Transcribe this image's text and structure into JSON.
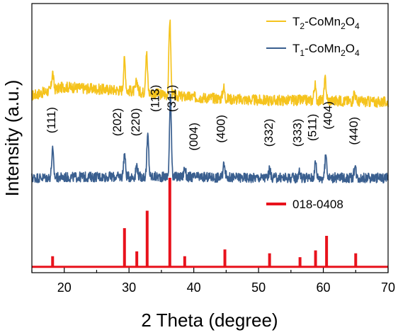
{
  "chart_data": {
    "type": "line",
    "title": "",
    "xlabel": "2 Theta (degree)",
    "ylabel": "Intensity (a.u.)",
    "xlim": [
      15,
      70
    ],
    "xticks": [
      20,
      30,
      40,
      50,
      60,
      70
    ],
    "y_ticks_shown": false,
    "grid": false,
    "legend_placement": "top-right",
    "legend": [
      {
        "series": "T2",
        "text_parts": [
          [
            "T",
            ""
          ],
          [
            "2",
            "sub"
          ],
          [
            "-CoMn",
            ""
          ],
          [
            "2",
            "sub"
          ],
          [
            "O",
            ""
          ],
          [
            "4",
            "sub"
          ]
        ]
      },
      {
        "series": "T1",
        "text_parts": [
          [
            "T",
            ""
          ],
          [
            "1",
            "sub"
          ],
          [
            "-CoMn",
            ""
          ],
          [
            "2",
            "sub"
          ],
          [
            "O",
            ""
          ],
          [
            "4",
            "sub"
          ]
        ]
      },
      {
        "series": "ref",
        "text_parts": [
          [
            "018-0408",
            ""
          ]
        ]
      }
    ],
    "series": [
      {
        "key": "T2",
        "name": "T2-CoMn2O4",
        "color": "#F5C31D",
        "kind": "xrd",
        "baseline": 8.6,
        "noise": 0.28,
        "baseline_curve": [
          [
            15,
            0.25
          ],
          [
            20,
            0.7
          ],
          [
            24,
            0.6
          ],
          [
            30,
            0.5
          ],
          [
            38,
            0.2
          ],
          [
            50,
            0.0
          ],
          [
            60,
            0.0
          ],
          [
            70,
            -0.1
          ]
        ],
        "peaks": [
          {
            "x": 18.2,
            "h": 0.9
          },
          {
            "x": 29.3,
            "h": 1.6
          },
          {
            "x": 31.2,
            "h": 0.55
          },
          {
            "x": 32.7,
            "h": 2.1
          },
          {
            "x": 36.3,
            "h": 3.9
          },
          {
            "x": 44.6,
            "h": 0.6
          },
          {
            "x": 58.7,
            "h": 0.8
          },
          {
            "x": 60.3,
            "h": 1.1
          },
          {
            "x": 64.8,
            "h": 0.5
          }
        ]
      },
      {
        "key": "T1",
        "name": "T1-CoMn2O4",
        "color": "#3A5F8F",
        "kind": "xrd",
        "baseline": 4.6,
        "noise": 0.26,
        "baseline_curve": [
          [
            15,
            0.0
          ],
          [
            25,
            0.05
          ],
          [
            35,
            0.05
          ],
          [
            50,
            0.0
          ],
          [
            70,
            0.0
          ]
        ],
        "peaks": [
          {
            "x": 18.2,
            "h": 1.4
          },
          {
            "x": 29.3,
            "h": 1.2
          },
          {
            "x": 31.2,
            "h": 0.6
          },
          {
            "x": 32.9,
            "h": 2.1
          },
          {
            "x": 36.4,
            "h": 4.2
          },
          {
            "x": 38.6,
            "h": 0.5
          },
          {
            "x": 44.7,
            "h": 0.8
          },
          {
            "x": 51.7,
            "h": 0.4
          },
          {
            "x": 56.3,
            "h": 0.35
          },
          {
            "x": 58.8,
            "h": 0.8
          },
          {
            "x": 60.4,
            "h": 1.2
          },
          {
            "x": 64.9,
            "h": 0.6
          }
        ]
      },
      {
        "key": "ref",
        "name": "018-0408",
        "color": "#E8121C",
        "kind": "sticks",
        "baseline": 0,
        "sticks": [
          {
            "x": 18.2,
            "h": 0.55
          },
          {
            "x": 29.3,
            "h": 2.0
          },
          {
            "x": 31.2,
            "h": 0.8
          },
          {
            "x": 32.8,
            "h": 2.9
          },
          {
            "x": 36.3,
            "h": 4.6
          },
          {
            "x": 38.6,
            "h": 0.55
          },
          {
            "x": 44.8,
            "h": 0.9
          },
          {
            "x": 51.7,
            "h": 0.7
          },
          {
            "x": 56.4,
            "h": 0.5
          },
          {
            "x": 58.8,
            "h": 0.85
          },
          {
            "x": 60.5,
            "h": 1.6
          },
          {
            "x": 65.0,
            "h": 0.7
          }
        ]
      }
    ],
    "annotations": [
      {
        "text": "(111)",
        "x": 18.6,
        "y": 6.9
      },
      {
        "text": "(202)",
        "x": 28.8,
        "y": 6.75
      },
      {
        "text": "(220)",
        "x": 31.6,
        "y": 6.75
      },
      {
        "text": "(113)",
        "x": 34.6,
        "y": 8.0
      },
      {
        "text": "(311)",
        "x": 37.2,
        "y": 8.0
      },
      {
        "text": "(004)",
        "x": 40.6,
        "y": 6.0
      },
      {
        "text": "(400)",
        "x": 44.8,
        "y": 6.4
      },
      {
        "text": "(332)",
        "x": 52.2,
        "y": 6.2
      },
      {
        "text": "(333)",
        "x": 56.6,
        "y": 6.2
      },
      {
        "text": "(511)",
        "x": 58.9,
        "y": 6.5
      },
      {
        "text": "(404)",
        "x": 61.3,
        "y": 7.1
      },
      {
        "text": "(440)",
        "x": 65.3,
        "y": 6.3
      }
    ]
  }
}
